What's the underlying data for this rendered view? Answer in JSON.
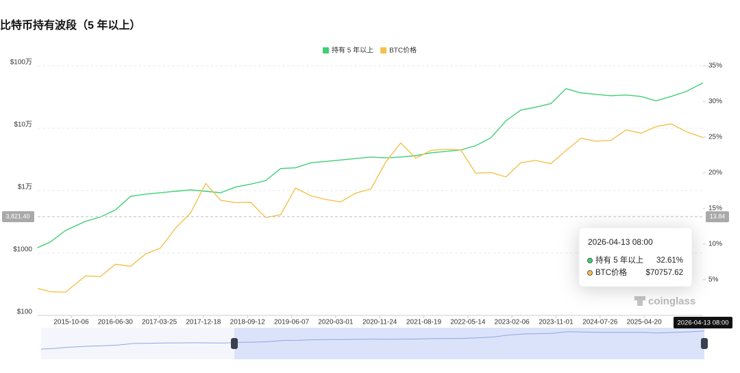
{
  "chart_data": {
    "type": "line",
    "title": "比特币持有波段（5 年以上）",
    "x": [
      "2015-03-16",
      "2015-06-01",
      "2015-09-01",
      "2016-01-01",
      "2016-04-01",
      "2016-07-01",
      "2016-10-01",
      "2017-01-01",
      "2017-04-01",
      "2017-07-01",
      "2017-10-01",
      "2018-01-01",
      "2018-04-01",
      "2018-07-01",
      "2018-10-01",
      "2019-01-01",
      "2019-04-01",
      "2019-07-01",
      "2019-10-01",
      "2020-01-01",
      "2020-04-01",
      "2020-07-01",
      "2020-10-01",
      "2021-01-01",
      "2021-04-01",
      "2021-07-01",
      "2021-10-01",
      "2022-01-01",
      "2022-04-01",
      "2022-07-01",
      "2022-10-01",
      "2023-01-01",
      "2023-04-01",
      "2023-07-01",
      "2023-10-01",
      "2024-01-01",
      "2024-04-01",
      "2024-07-01",
      "2024-10-01",
      "2025-01-01",
      "2025-04-01",
      "2025-07-01",
      "2025-10-01",
      "2026-01-01",
      "2026-04-13"
    ],
    "series": [
      {
        "name": "持有 5 年以上",
        "color": "#3ecf74",
        "axis": "y2",
        "values": [
          9.5,
          10.3,
          11.9,
          13.2,
          13.8,
          14.8,
          16.7,
          17.0,
          17.2,
          17.4,
          17.6,
          17.4,
          17.2,
          18.0,
          18.4,
          18.9,
          20.6,
          20.7,
          21.4,
          21.6,
          21.8,
          22.0,
          22.2,
          22.1,
          22.2,
          22.4,
          22.8,
          23.0,
          23.2,
          23.8,
          24.9,
          27.3,
          28.8,
          29.2,
          29.7,
          31.8,
          31.2,
          31.0,
          30.8,
          30.9,
          30.7,
          30.1,
          30.7,
          31.4,
          32.61
        ]
      },
      {
        "name": "BTC价格",
        "color": "#f3c14b",
        "values": [
          270,
          240,
          235,
          430,
          420,
          660,
          610,
          970,
          1200,
          2500,
          4400,
          13000,
          7000,
          6400,
          6500,
          3700,
          4100,
          11000,
          8300,
          7200,
          6600,
          9100,
          10600,
          29000,
          58000,
          33000,
          44000,
          46000,
          45000,
          19000,
          19500,
          16600,
          28000,
          30500,
          27000,
          44000,
          69000,
          62000,
          64000,
          94000,
          83000,
          106000,
          118000,
          88000,
          70757.62
        ]
      }
    ],
    "log_scale": true,
    "ylim": [
      100,
      1000000
    ],
    "yticks": [
      {
        "value": 100,
        "label": "$100"
      },
      {
        "value": 1000,
        "label": "$1000"
      },
      {
        "value": 10000,
        "label": "$1万"
      },
      {
        "value": 100000,
        "label": "$10万"
      },
      {
        "value": 1000000,
        "label": "$100万"
      }
    ],
    "y2lim": [
      0,
      35
    ],
    "y2ticks": [
      {
        "value": 5,
        "label": "5%"
      },
      {
        "value": 10,
        "label": "10%"
      },
      {
        "value": 15,
        "label": "15%"
      },
      {
        "value": 20,
        "label": "20%"
      },
      {
        "value": 25,
        "label": "25%"
      },
      {
        "value": 30,
        "label": "30%"
      },
      {
        "value": 35,
        "label": "35%"
      }
    ],
    "xlim": [
      "2015-03-16",
      "2026-04-13"
    ],
    "xticks": [
      "2015-10-06",
      "2016-06-30",
      "2017-03-25",
      "2017-12-18",
      "2018-09-12",
      "2019-06-07",
      "2020-03-01",
      "2020-11-24",
      "2021-08-19",
      "2022-05-14",
      "2023-02-06",
      "2023-11-01",
      "2024-07-26",
      "2025-04-20"
    ],
    "grid": true,
    "legend": "top",
    "crosshair": {
      "y_value": 3821.4,
      "y_label": "3,821.40",
      "y2_value": 13.84
    },
    "tooltip": {
      "date": "2026-04-13 08:00",
      "items": [
        {
          "value": 32.61,
          "label": "32.61%"
        },
        {
          "value": 70757.62,
          "label": "$70757.62"
        }
      ]
    },
    "watermark": "coinglass"
  }
}
